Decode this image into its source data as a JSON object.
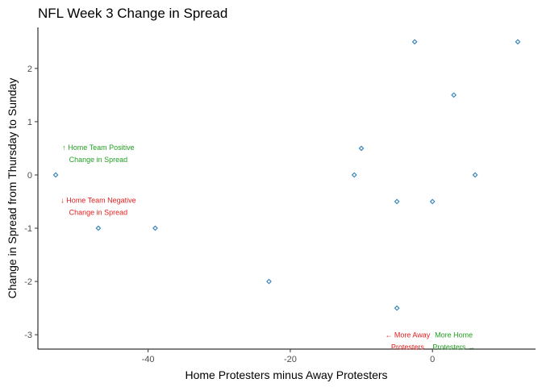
{
  "chart_data": {
    "type": "scatter",
    "title": "NFL Week 3 Change in Spread",
    "xlabel": "Home Protesters minus Away Protesters",
    "ylabel": "Change in Spread from Thursday to Sunday",
    "xlim": [
      -55.5,
      14.5
    ],
    "ylim": [
      -3.27,
      2.77
    ],
    "x_ticks": [
      -40,
      -20,
      0
    ],
    "y_ticks": [
      -3,
      -2,
      -1,
      0,
      1,
      2
    ],
    "grid": false,
    "points": [
      {
        "x": -53,
        "y": 0
      },
      {
        "x": -47,
        "y": -1
      },
      {
        "x": -39,
        "y": -1
      },
      {
        "x": -23,
        "y": -2
      },
      {
        "x": -11,
        "y": 0
      },
      {
        "x": -10,
        "y": 0.5
      },
      {
        "x": -5,
        "y": -0.5
      },
      {
        "x": -5,
        "y": -2.5
      },
      {
        "x": -2.5,
        "y": 2.5
      },
      {
        "x": 0,
        "y": -0.5
      },
      {
        "x": 3,
        "y": 1.5
      },
      {
        "x": 6,
        "y": 0
      },
      {
        "x": 12,
        "y": 2.5
      }
    ],
    "annotations": [
      {
        "lines": [
          "↑ Home Team Positive",
          "Change in Spread"
        ],
        "x": -47,
        "y": 0.47,
        "color": "#22a022"
      },
      {
        "lines": [
          "↓ Home Team Negative",
          "Change in Spread"
        ],
        "x": -47,
        "y": -0.52,
        "color": "#e02020"
      },
      {
        "lines": [
          "← More Away",
          "Protesters"
        ],
        "x": -3.5,
        "y": -3.05,
        "color": "#e02020"
      },
      {
        "lines": [
          "More Home",
          "Protesters →"
        ],
        "x": 3,
        "y": -3.05,
        "color": "#22a022"
      }
    ],
    "point_color": "#2f7fb5"
  }
}
